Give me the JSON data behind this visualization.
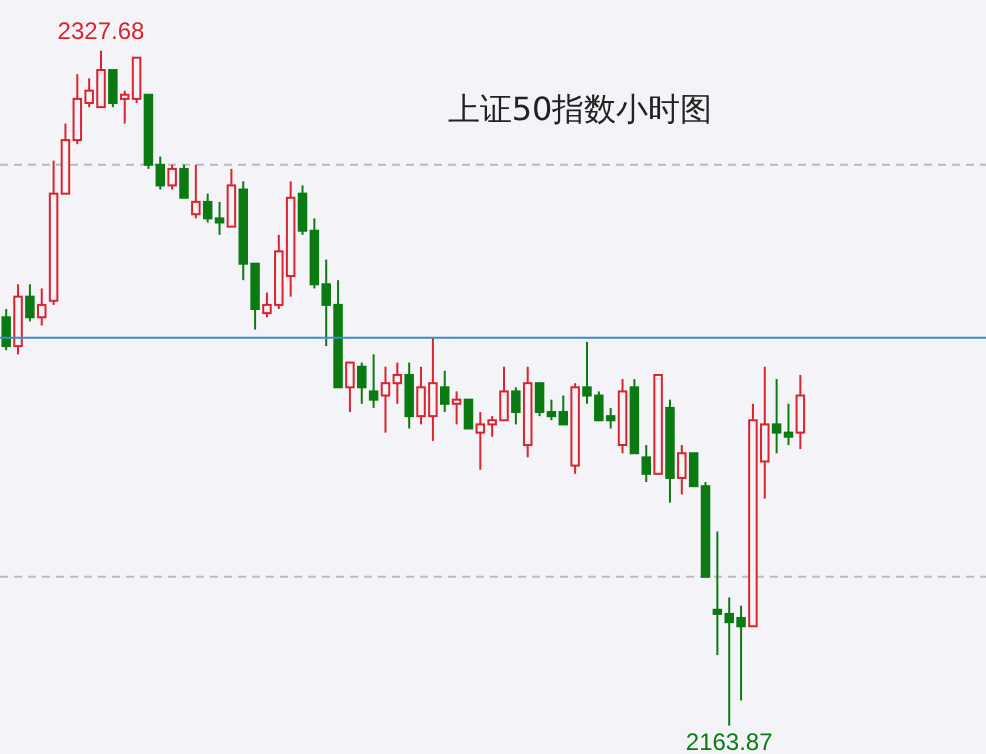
{
  "chart_data": {
    "type": "candlestick",
    "title": "上证50指数小时图",
    "categories": [
      null,
      null,
      null,
      null,
      null,
      null,
      null,
      null,
      null,
      null,
      null,
      null,
      null,
      null,
      null,
      null,
      null,
      null,
      null,
      null,
      null,
      null,
      null,
      null,
      null,
      null,
      null,
      null,
      null,
      null,
      null,
      null,
      null,
      null,
      null,
      null,
      null,
      null,
      null,
      null,
      null,
      null,
      null,
      null,
      null,
      null,
      null,
      null,
      null,
      null,
      null,
      null,
      null,
      null,
      null,
      null,
      null,
      null,
      null,
      null,
      null,
      null,
      null,
      null,
      null,
      null,
      null,
      null
    ],
    "ohlc": [
      [
        2263,
        2265,
        2255,
        2256
      ],
      [
        2256,
        2271,
        2254,
        2268
      ],
      [
        2268,
        2271,
        2262,
        2263
      ],
      [
        2263,
        2270,
        2261,
        2266
      ],
      [
        2267,
        2301,
        2266,
        2293
      ],
      [
        2293,
        2310,
        2293,
        2306
      ],
      [
        2306,
        2322,
        2305,
        2316
      ],
      [
        2315,
        2321,
        2314,
        2318
      ],
      [
        2314,
        2327.68,
        2314,
        2323
      ],
      [
        2323,
        2323,
        2314,
        2315
      ],
      [
        2316,
        2318,
        2310,
        2317
      ],
      [
        2316,
        2326,
        2315,
        2326
      ],
      [
        2317,
        2317,
        2299,
        2300
      ],
      [
        2300,
        2302,
        2294,
        2295
      ],
      [
        2295,
        2300,
        2294,
        2299
      ],
      [
        2299,
        2300,
        2292,
        2292
      ],
      [
        2288,
        2300,
        2287,
        2291
      ],
      [
        2291,
        2293,
        2286,
        2287
      ],
      [
        2287,
        2291,
        2283,
        2286
      ],
      [
        2285,
        2299,
        2285,
        2295
      ],
      [
        2294,
        2296,
        2272,
        2276
      ],
      [
        2276,
        2276,
        2260,
        2265
      ],
      [
        2264,
        2269,
        2263,
        2266
      ],
      [
        2266,
        2283,
        2265,
        2279
      ],
      [
        2273,
        2296,
        2268,
        2292
      ],
      [
        2293,
        2295,
        2283,
        2284
      ],
      [
        2284,
        2287,
        2270,
        2271
      ],
      [
        2271,
        2277,
        2256,
        2266
      ],
      [
        2266,
        2272,
        2246,
        2246
      ],
      [
        2246,
        2252,
        2240,
        2252
      ],
      [
        2251,
        2252,
        2242,
        2246
      ],
      [
        2245,
        2254,
        2241,
        2243
      ],
      [
        2244,
        2251,
        2235,
        2247
      ],
      [
        2247,
        2252,
        2242,
        2249
      ],
      [
        2249,
        2252,
        2236,
        2239
      ],
      [
        2239,
        2251,
        2237,
        2246
      ],
      [
        2239,
        2258,
        2233,
        2247
      ],
      [
        2246,
        2250,
        2240,
        2242
      ],
      [
        2242,
        2245,
        2237,
        2243
      ],
      [
        2243,
        2243,
        2236,
        2236
      ],
      [
        2235,
        2240,
        2226,
        2237
      ],
      [
        2237,
        2239,
        2234,
        2238
      ],
      [
        2238,
        2251,
        2238,
        2245
      ],
      [
        2245,
        2246,
        2237,
        2240
      ],
      [
        2232,
        2251,
        2229,
        2247
      ],
      [
        2247,
        2247,
        2239,
        2240
      ],
      [
        2240,
        2243,
        2238,
        2239
      ],
      [
        2240,
        2244,
        2237,
        2237
      ],
      [
        2227,
        2247,
        2225,
        2246
      ],
      [
        2246,
        2257,
        2242,
        2244
      ],
      [
        2244,
        2245,
        2238,
        2238
      ],
      [
        2239,
        2241,
        2236,
        2238
      ],
      [
        2232,
        2248,
        2230,
        2245
      ],
      [
        2246,
        2248,
        2230,
        2230
      ],
      [
        2229,
        2232,
        2223,
        2225
      ],
      [
        2225,
        2249,
        2225,
        2249
      ],
      [
        2241,
        2243,
        2218,
        2224
      ],
      [
        2224,
        2232,
        2220,
        2230
      ],
      [
        2230,
        2230,
        2222,
        2222
      ],
      [
        2222,
        2223,
        2200,
        2200
      ],
      [
        2192,
        2211,
        2181,
        2191
      ],
      [
        2191,
        2195,
        2163.87,
        2189
      ],
      [
        2190,
        2193,
        2170,
        2188
      ],
      [
        2188,
        2242,
        2188,
        2238
      ],
      [
        2228,
        2251,
        2219,
        2237
      ],
      [
        2237,
        2248,
        2230,
        2235
      ],
      [
        2235,
        2242,
        2232,
        2234
      ],
      [
        2235,
        2249,
        2231,
        2244
      ]
    ],
    "colors": [
      "#0b7a12",
      "#d9242f",
      "#0b7a12",
      "#d9242f",
      "#d9242f",
      "#d9242f",
      "#d9242f",
      "#d9242f",
      "#d9242f",
      "#0b7a12",
      "#d9242f",
      "#d9242f",
      "#0b7a12",
      "#0b7a12",
      "#d9242f",
      "#0b7a12",
      "#d9242f",
      "#0b7a12",
      "#0b7a12",
      "#d9242f",
      "#0b7a12",
      "#0b7a12",
      "#d9242f",
      "#d9242f",
      "#d9242f",
      "#0b7a12",
      "#0b7a12",
      "#0b7a12",
      "#0b7a12",
      "#d9242f",
      "#0b7a12",
      "#0b7a12",
      "#d9242f",
      "#d9242f",
      "#0b7a12",
      "#d9242f",
      "#d9242f",
      "#0b7a12",
      "#d9242f",
      "#0b7a12",
      "#d9242f",
      "#d9242f",
      "#d9242f",
      "#0b7a12",
      "#d9242f",
      "#0b7a12",
      "#0b7a12",
      "#0b7a12",
      "#d9242f",
      "#0b7a12",
      "#0b7a12",
      "#0b7a12",
      "#d9242f",
      "#0b7a12",
      "#0b7a12",
      "#d9242f",
      "#0b7a12",
      "#d9242f",
      "#0b7a12",
      "#0b7a12",
      "#0b7a12",
      "#0b7a12",
      "#0b7a12",
      "#d9242f",
      "#d9242f",
      "#0b7a12",
      "#0b7a12",
      "#d9242f"
    ],
    "ylim": [
      2157,
      2340
    ],
    "yticks": [
      {
        "value": 2300,
        "label": null
      },
      {
        "value": 2200,
        "label": null
      }
    ],
    "grid": "y",
    "tick_labels": false,
    "ref_lines": [
      {
        "axis": "y",
        "value": 2258,
        "color": "#3a8ccc"
      }
    ],
    "annotations": [
      {
        "text": "2327.68",
        "y": 2327.68
      },
      {
        "text": "2163.87",
        "y": 2163.87
      }
    ]
  }
}
